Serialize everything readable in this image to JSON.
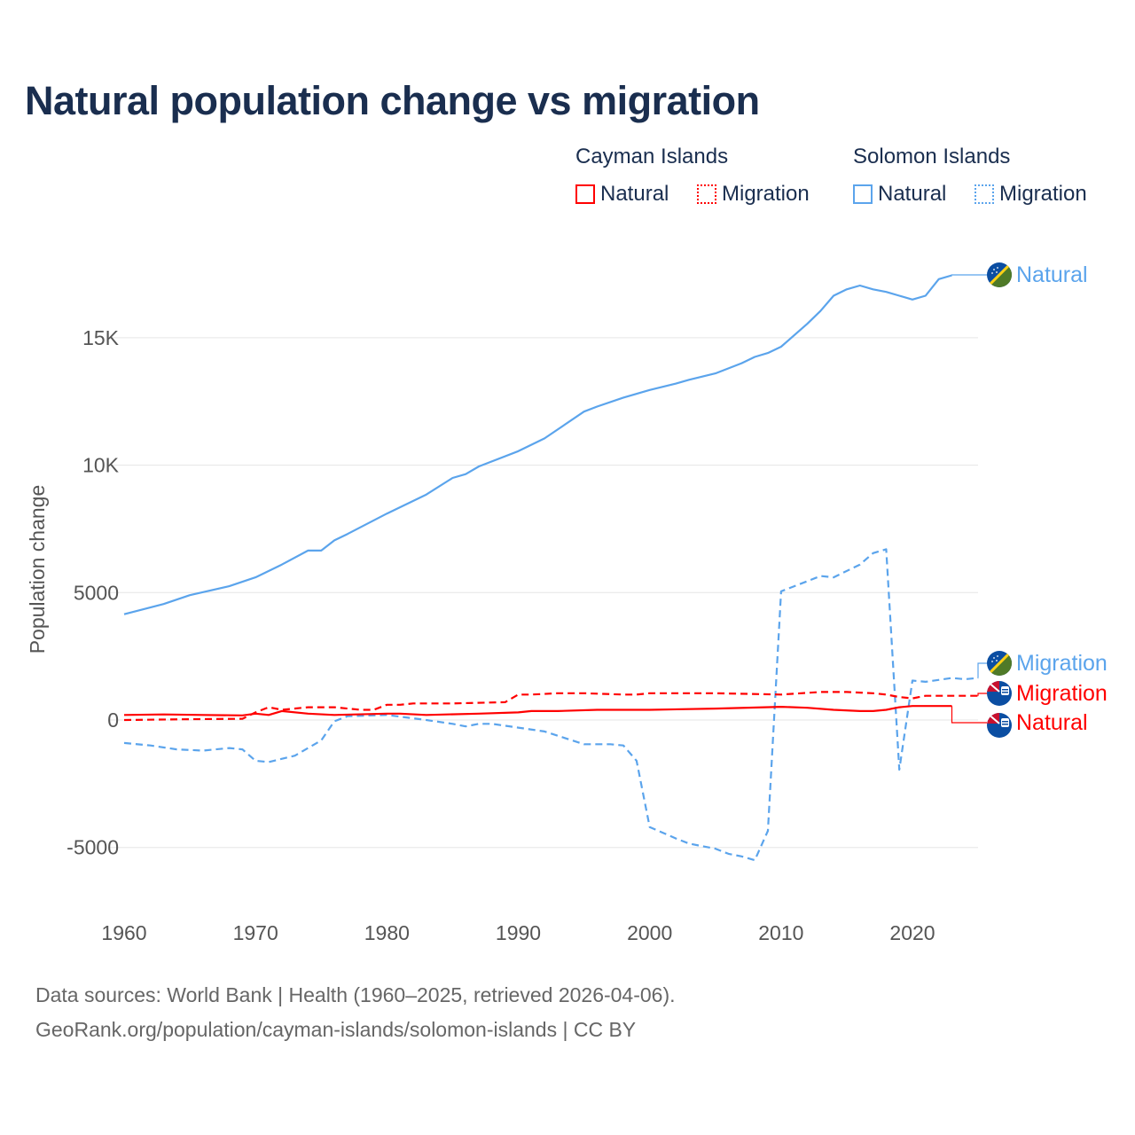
{
  "title": "Natural population change vs migration",
  "legend": {
    "groups": [
      {
        "name": "Cayman Islands",
        "color": "#ff0000",
        "items": [
          "Natural",
          "Migration"
        ]
      },
      {
        "name": "Solomon Islands",
        "color": "#5ba4ec",
        "items": [
          "Natural",
          "Migration"
        ]
      }
    ]
  },
  "footer": {
    "line1": "Data sources: World Bank | Health (1960–2025, retrieved 2026-04-06).",
    "line2": "GeoRank.org/population/cayman-islands/solomon-islands | CC BY"
  },
  "chart_data": {
    "type": "line",
    "title": "Natural population change vs migration",
    "xlabel": "",
    "ylabel": "Population change",
    "xlim": [
      1960,
      2025
    ],
    "ylim": [
      -6000,
      18500
    ],
    "x_ticks": [
      1960,
      1970,
      1980,
      1990,
      2000,
      2010,
      2020
    ],
    "x_tick_labels": [
      "1960",
      "1970",
      "1980",
      "1990",
      "2000",
      "2010",
      "2020"
    ],
    "y_ticks": [
      -5000,
      0,
      5000,
      10000,
      15000
    ],
    "y_tick_labels": [
      "-5000",
      "0",
      "5000",
      "10K",
      "15K"
    ],
    "grid": true,
    "series": [
      {
        "name": "Solomon Islands Natural",
        "label": "Natural",
        "color": "#5ba4ec",
        "dash": false,
        "flag": "solomon-islands",
        "points": [
          [
            1960,
            4150
          ],
          [
            1963,
            4550
          ],
          [
            1965,
            4900
          ],
          [
            1968,
            5250
          ],
          [
            1970,
            5600
          ],
          [
            1972,
            6100
          ],
          [
            1974,
            6650
          ],
          [
            1975,
            6650
          ],
          [
            1976,
            7050
          ],
          [
            1977,
            7300
          ],
          [
            1980,
            8100
          ],
          [
            1983,
            8850
          ],
          [
            1985,
            9500
          ],
          [
            1986,
            9650
          ],
          [
            1987,
            9950
          ],
          [
            1990,
            10550
          ],
          [
            1992,
            11050
          ],
          [
            1995,
            12100
          ],
          [
            1996,
            12300
          ],
          [
            1998,
            12650
          ],
          [
            2000,
            12950
          ],
          [
            2002,
            13200
          ],
          [
            2003,
            13350
          ],
          [
            2005,
            13600
          ],
          [
            2006,
            13800
          ],
          [
            2007,
            14000
          ],
          [
            2008,
            14250
          ],
          [
            2009,
            14400
          ],
          [
            2010,
            14650
          ],
          [
            2012,
            15550
          ],
          [
            2013,
            16050
          ],
          [
            2014,
            16650
          ],
          [
            2015,
            16900
          ],
          [
            2016,
            17050
          ],
          [
            2017,
            16900
          ],
          [
            2018,
            16800
          ],
          [
            2019,
            16650
          ],
          [
            2020,
            16500
          ],
          [
            2021,
            16650
          ],
          [
            2022,
            17300
          ],
          [
            2023,
            17450
          ]
        ]
      },
      {
        "name": "Solomon Islands Migration",
        "label": "Migration",
        "color": "#5ba4ec",
        "dash": true,
        "flag": "solomon-islands",
        "points": [
          [
            1960,
            -900
          ],
          [
            1962,
            -1000
          ],
          [
            1964,
            -1150
          ],
          [
            1966,
            -1200
          ],
          [
            1968,
            -1100
          ],
          [
            1969,
            -1150
          ],
          [
            1970,
            -1600
          ],
          [
            1971,
            -1650
          ],
          [
            1973,
            -1400
          ],
          [
            1975,
            -800
          ],
          [
            1976,
            -50
          ],
          [
            1977,
            150
          ],
          [
            1980,
            200
          ],
          [
            1983,
            0
          ],
          [
            1985,
            -150
          ],
          [
            1986,
            -250
          ],
          [
            1987,
            -150
          ],
          [
            1988,
            -150
          ],
          [
            1990,
            -300
          ],
          [
            1992,
            -450
          ],
          [
            1995,
            -950
          ],
          [
            1997,
            -950
          ],
          [
            1998,
            -1000
          ],
          [
            1999,
            -1600
          ],
          [
            2000,
            -4200
          ],
          [
            2002,
            -4650
          ],
          [
            2003,
            -4850
          ],
          [
            2005,
            -5050
          ],
          [
            2006,
            -5250
          ],
          [
            2007,
            -5350
          ],
          [
            2008,
            -5500
          ],
          [
            2009,
            -4350
          ],
          [
            2010,
            5050
          ],
          [
            2012,
            5450
          ],
          [
            2013,
            5650
          ],
          [
            2014,
            5600
          ],
          [
            2016,
            6100
          ],
          [
            2017,
            6550
          ],
          [
            2018,
            6700
          ],
          [
            2019,
            -1950
          ],
          [
            2020,
            1550
          ],
          [
            2021,
            1500
          ],
          [
            2023,
            1650
          ],
          [
            2024,
            1600
          ],
          [
            2025,
            1650
          ]
        ]
      },
      {
        "name": "Cayman Islands Migration",
        "label": "Migration",
        "color": "#ff0000",
        "dash": true,
        "flag": "cayman-islands",
        "points": [
          [
            1960,
            0
          ],
          [
            1965,
            30
          ],
          [
            1969,
            50
          ],
          [
            1970,
            300
          ],
          [
            1971,
            500
          ],
          [
            1972,
            400
          ],
          [
            1974,
            500
          ],
          [
            1976,
            500
          ],
          [
            1978,
            400
          ],
          [
            1979,
            400
          ],
          [
            1980,
            600
          ],
          [
            1981,
            600
          ],
          [
            1982,
            650
          ],
          [
            1985,
            650
          ],
          [
            1989,
            700
          ],
          [
            1990,
            1000
          ],
          [
            1991,
            1000
          ],
          [
            1993,
            1050
          ],
          [
            1995,
            1050
          ],
          [
            1998,
            1000
          ],
          [
            1999,
            1000
          ],
          [
            2000,
            1050
          ],
          [
            2005,
            1050
          ],
          [
            2010,
            1000
          ],
          [
            2013,
            1100
          ],
          [
            2015,
            1100
          ],
          [
            2017,
            1050
          ],
          [
            2018,
            1000
          ],
          [
            2019,
            900
          ],
          [
            2020,
            850
          ],
          [
            2021,
            950
          ],
          [
            2025,
            950
          ]
        ]
      },
      {
        "name": "Cayman Islands Natural",
        "label": "Natural",
        "color": "#ff0000",
        "dash": false,
        "flag": "cayman-islands",
        "points": [
          [
            1960,
            200
          ],
          [
            1963,
            220
          ],
          [
            1966,
            200
          ],
          [
            1969,
            180
          ],
          [
            1970,
            250
          ],
          [
            1971,
            200
          ],
          [
            1972,
            350
          ],
          [
            1974,
            250
          ],
          [
            1976,
            200
          ],
          [
            1980,
            250
          ],
          [
            1981,
            250
          ],
          [
            1983,
            200
          ],
          [
            1987,
            250
          ],
          [
            1990,
            300
          ],
          [
            1991,
            350
          ],
          [
            1993,
            350
          ],
          [
            1996,
            400
          ],
          [
            2000,
            400
          ],
          [
            2005,
            450
          ],
          [
            2010,
            520
          ],
          [
            2012,
            480
          ],
          [
            2014,
            400
          ],
          [
            2016,
            350
          ],
          [
            2017,
            350
          ],
          [
            2018,
            400
          ],
          [
            2019,
            500
          ],
          [
            2020,
            550
          ],
          [
            2023,
            550
          ]
        ]
      }
    ]
  }
}
